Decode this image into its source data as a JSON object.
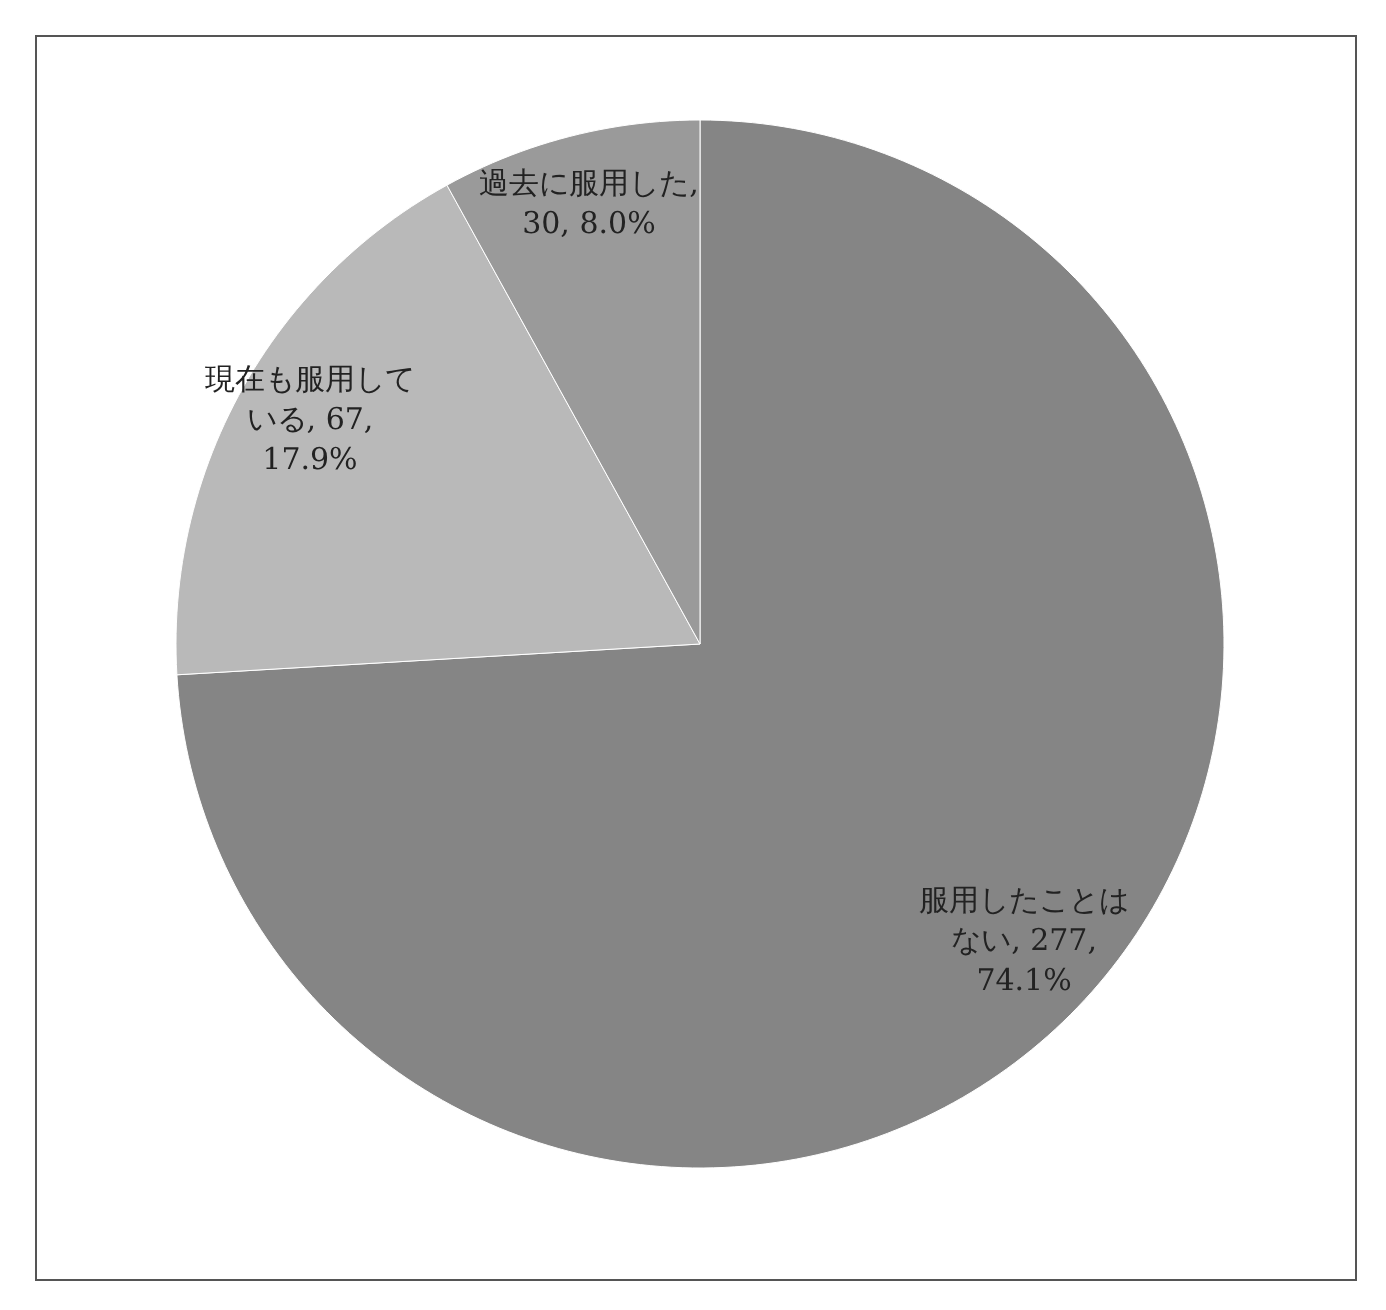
{
  "chart_data": {
    "type": "pie",
    "categories": [
      "服用したことはない",
      "現在も服用している",
      "過去に服用した"
    ],
    "values": [
      277,
      67,
      30
    ],
    "value_labels": [
      ", 277, 74.1%",
      ", 67, 17.9%",
      ", 30, 8.0%"
    ],
    "colors": [
      "#858585",
      "#b9b9b9",
      "#9a9a9a"
    ]
  }
}
